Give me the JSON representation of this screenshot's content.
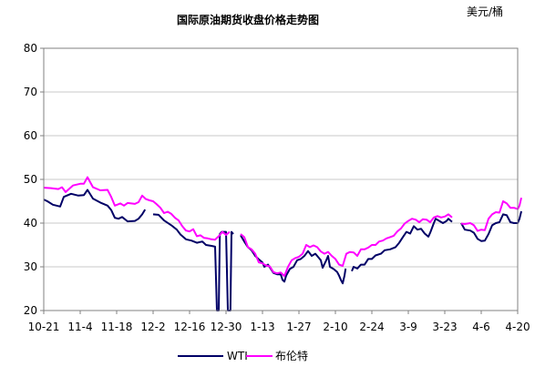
{
  "chart_data": {
    "type": "line",
    "title": "国际原油期货收盘价格走势图",
    "unit": "美元/桶",
    "ylim": [
      20,
      80
    ],
    "yticks": [
      20,
      30,
      40,
      50,
      60,
      70,
      80
    ],
    "xticks": [
      "10-21",
      "11-4",
      "11-18",
      "12-2",
      "12-16",
      "12-30",
      "1-13",
      "1-27",
      "2-10",
      "2-24",
      "3-9",
      "3-23",
      "4-6",
      "4-20"
    ],
    "grid": true,
    "legend": "bottom",
    "colors": {
      "wti": "#000066",
      "brent": "#ff00ff"
    },
    "series": [
      {
        "name": "WTI",
        "color": "#000066",
        "points": [
          [
            0,
            45.4
          ],
          [
            0.1,
            45.0
          ],
          [
            0.25,
            44.2
          ],
          [
            0.45,
            43.8
          ],
          [
            0.55,
            46.0
          ],
          [
            0.75,
            46.7
          ],
          [
            0.95,
            46.3
          ],
          [
            1.1,
            46.4
          ],
          [
            1.2,
            47.6
          ],
          [
            1.35,
            45.6
          ],
          [
            1.55,
            44.7
          ],
          [
            1.75,
            44.0
          ],
          [
            1.85,
            43.0
          ],
          [
            1.95,
            41.2
          ],
          [
            2.05,
            41.0
          ],
          [
            2.15,
            41.4
          ],
          [
            2.3,
            40.4
          ],
          [
            2.5,
            40.5
          ],
          [
            2.6,
            41.0
          ],
          [
            2.7,
            42.0
          ],
          [
            2.78,
            43.1
          ],
          null,
          [
            3.0,
            42.0
          ],
          [
            3.15,
            41.9
          ],
          [
            3.3,
            40.6
          ],
          [
            3.5,
            39.5
          ],
          [
            3.65,
            38.5
          ],
          [
            3.75,
            37.4
          ],
          [
            3.9,
            36.3
          ],
          [
            4.05,
            36.0
          ],
          [
            4.2,
            35.5
          ],
          [
            4.35,
            35.8
          ],
          [
            4.45,
            35.0
          ],
          [
            4.6,
            34.8
          ],
          [
            4.7,
            34.6
          ],
          [
            4.75,
            20
          ],
          [
            4.8,
            20
          ],
          [
            4.83,
            37.5
          ],
          [
            4.88,
            38.0
          ],
          [
            5.0,
            38.0
          ],
          [
            5.05,
            20
          ],
          [
            5.12,
            20
          ],
          [
            5.15,
            38.0
          ],
          [
            5.2,
            37.5
          ],
          null,
          [
            5.4,
            37.2
          ],
          [
            5.5,
            35.8
          ],
          [
            5.6,
            34.5
          ],
          [
            5.7,
            33.8
          ],
          [
            5.8,
            32.5
          ],
          [
            5.9,
            31.7
          ],
          [
            6.0,
            31.0
          ],
          [
            6.05,
            30.0
          ],
          [
            6.15,
            30.5
          ],
          [
            6.2,
            29.9
          ],
          [
            6.3,
            28.6
          ],
          [
            6.4,
            28.3
          ],
          [
            6.5,
            28.3
          ],
          [
            6.55,
            27.0
          ],
          [
            6.6,
            26.6
          ],
          [
            6.65,
            28.0
          ],
          [
            6.75,
            29.5
          ],
          [
            6.85,
            30.0
          ],
          [
            6.95,
            31.5
          ],
          [
            7.05,
            31.8
          ],
          [
            7.15,
            32.5
          ],
          [
            7.25,
            33.6
          ],
          [
            7.35,
            32.5
          ],
          [
            7.45,
            33.0
          ],
          [
            7.55,
            32.0
          ],
          [
            7.6,
            31.5
          ],
          [
            7.65,
            29.8
          ],
          [
            7.75,
            31.5
          ],
          [
            7.8,
            32.5
          ],
          [
            7.85,
            30.0
          ],
          [
            7.95,
            29.5
          ],
          [
            8.05,
            28.8
          ],
          [
            8.1,
            28.0
          ],
          [
            8.15,
            27.0
          ],
          [
            8.2,
            26.2
          ],
          [
            8.25,
            28.0
          ],
          [
            8.28,
            29.6
          ],
          null,
          [
            8.45,
            29.0
          ],
          [
            8.5,
            30.0
          ],
          [
            8.6,
            29.6
          ],
          [
            8.7,
            30.5
          ],
          [
            8.8,
            30.5
          ],
          [
            8.9,
            31.8
          ],
          [
            9.0,
            31.8
          ],
          [
            9.1,
            32.6
          ],
          [
            9.25,
            33.0
          ],
          [
            9.35,
            33.8
          ],
          [
            9.5,
            34.0
          ],
          [
            9.65,
            34.5
          ],
          [
            9.75,
            35.5
          ],
          [
            9.85,
            36.8
          ],
          [
            9.95,
            38.0
          ],
          [
            10.05,
            37.6
          ],
          [
            10.15,
            39.3
          ],
          [
            10.25,
            38.5
          ],
          [
            10.35,
            38.7
          ],
          [
            10.45,
            37.6
          ],
          [
            10.55,
            36.9
          ],
          [
            10.6,
            37.8
          ],
          [
            10.7,
            40.0
          ],
          [
            10.75,
            41.0
          ],
          [
            10.85,
            40.5
          ],
          [
            10.95,
            40.0
          ],
          [
            11.05,
            40.5
          ],
          [
            11.1,
            41.0
          ],
          [
            11.2,
            40.3
          ],
          null,
          [
            11.45,
            40.0
          ],
          [
            11.55,
            38.5
          ],
          [
            11.7,
            38.3
          ],
          [
            11.8,
            37.8
          ],
          [
            11.9,
            36.4
          ],
          [
            12.0,
            35.9
          ],
          [
            12.1,
            36.0
          ],
          [
            12.2,
            37.5
          ],
          [
            12.3,
            39.5
          ],
          [
            12.4,
            40.0
          ],
          [
            12.5,
            40.2
          ],
          [
            12.6,
            42.0
          ],
          [
            12.7,
            41.8
          ],
          [
            12.8,
            40.2
          ],
          [
            12.9,
            40.0
          ],
          [
            13.0,
            40.0
          ],
          [
            13.05,
            41.0
          ],
          [
            13.1,
            42.7
          ]
        ]
      },
      {
        "name": "布伦特",
        "color": "#ff00ff",
        "points": [
          [
            0,
            48.1
          ],
          [
            0.2,
            48.0
          ],
          [
            0.4,
            47.8
          ],
          [
            0.5,
            48.2
          ],
          [
            0.6,
            47.1
          ],
          [
            0.8,
            48.6
          ],
          [
            1.0,
            49.0
          ],
          [
            1.1,
            49.0
          ],
          [
            1.2,
            50.5
          ],
          [
            1.35,
            48.2
          ],
          [
            1.55,
            47.5
          ],
          [
            1.75,
            47.6
          ],
          [
            1.85,
            46.0
          ],
          [
            1.95,
            44.0
          ],
          [
            2.1,
            44.5
          ],
          [
            2.2,
            44.0
          ],
          [
            2.3,
            44.6
          ],
          [
            2.5,
            44.4
          ],
          [
            2.6,
            44.8
          ],
          [
            2.7,
            46.3
          ],
          [
            2.8,
            45.5
          ],
          [
            2.9,
            45.2
          ],
          [
            3.0,
            45.0
          ],
          [
            3.1,
            44.3
          ],
          [
            3.2,
            43.5
          ],
          [
            3.3,
            42.3
          ],
          [
            3.4,
            42.6
          ],
          [
            3.5,
            42.1
          ],
          [
            3.6,
            41.2
          ],
          [
            3.7,
            40.6
          ],
          [
            3.8,
            39.3
          ],
          [
            3.9,
            38.3
          ],
          [
            4.0,
            38.1
          ],
          [
            4.1,
            38.6
          ],
          [
            4.2,
            37.0
          ],
          [
            4.3,
            37.2
          ],
          [
            4.4,
            36.6
          ],
          [
            4.5,
            36.5
          ],
          [
            4.6,
            36.3
          ],
          [
            4.7,
            36.2
          ],
          [
            4.8,
            37.0
          ],
          [
            4.9,
            38.0
          ],
          [
            5.0,
            37.3
          ],
          [
            5.1,
            38.0
          ],
          null,
          [
            5.4,
            37.5
          ],
          [
            5.5,
            36.8
          ],
          [
            5.6,
            34.5
          ],
          [
            5.7,
            34.0
          ],
          [
            5.8,
            33.0
          ],
          [
            5.9,
            31.0
          ],
          [
            6.0,
            30.8
          ],
          [
            6.1,
            30.3
          ],
          [
            6.2,
            30.1
          ],
          [
            6.3,
            28.8
          ],
          [
            6.4,
            28.5
          ],
          [
            6.5,
            28.7
          ],
          [
            6.6,
            27.9
          ],
          [
            6.7,
            30.0
          ],
          [
            6.8,
            31.5
          ],
          [
            6.9,
            32.0
          ],
          [
            7.0,
            32.3
          ],
          [
            7.1,
            33.0
          ],
          [
            7.2,
            35.0
          ],
          [
            7.3,
            34.5
          ],
          [
            7.4,
            34.9
          ],
          [
            7.5,
            34.5
          ],
          [
            7.6,
            33.5
          ],
          [
            7.7,
            33.0
          ],
          [
            7.8,
            33.4
          ],
          [
            7.9,
            32.5
          ],
          [
            8.0,
            31.8
          ],
          [
            8.1,
            30.5
          ],
          [
            8.2,
            30.2
          ],
          [
            8.3,
            33.0
          ],
          [
            8.4,
            33.4
          ],
          [
            8.5,
            33.3
          ],
          [
            8.6,
            32.5
          ],
          [
            8.7,
            34.0
          ],
          [
            8.8,
            34.0
          ],
          [
            8.9,
            34.4
          ],
          [
            9.0,
            35.0
          ],
          [
            9.1,
            35.0
          ],
          [
            9.2,
            35.8
          ],
          [
            9.3,
            36.0
          ],
          [
            9.4,
            36.5
          ],
          [
            9.5,
            36.8
          ],
          [
            9.6,
            37.1
          ],
          [
            9.7,
            38.1
          ],
          [
            9.8,
            38.8
          ],
          [
            9.9,
            39.9
          ],
          [
            10.0,
            40.5
          ],
          [
            10.1,
            41.0
          ],
          [
            10.2,
            40.8
          ],
          [
            10.3,
            40.2
          ],
          [
            10.4,
            40.9
          ],
          [
            10.5,
            40.8
          ],
          [
            10.6,
            40.2
          ],
          [
            10.7,
            41.3
          ],
          [
            10.8,
            41.6
          ],
          [
            10.9,
            41.3
          ],
          [
            11.0,
            41.5
          ],
          [
            11.1,
            42.0
          ],
          [
            11.2,
            41.3
          ],
          null,
          [
            11.45,
            39.9
          ],
          [
            11.55,
            39.8
          ],
          [
            11.7,
            40.0
          ],
          [
            11.8,
            39.5
          ],
          [
            11.9,
            38.2
          ],
          [
            12.0,
            38.5
          ],
          [
            12.1,
            38.4
          ],
          [
            12.2,
            41.0
          ],
          [
            12.3,
            42.0
          ],
          [
            12.4,
            42.5
          ],
          [
            12.5,
            42.4
          ],
          [
            12.6,
            45.0
          ],
          [
            12.7,
            44.5
          ],
          [
            12.8,
            43.5
          ],
          [
            12.9,
            43.5
          ],
          [
            13.0,
            43.2
          ],
          [
            13.05,
            44.0
          ],
          [
            13.1,
            45.8
          ]
        ]
      }
    ]
  }
}
